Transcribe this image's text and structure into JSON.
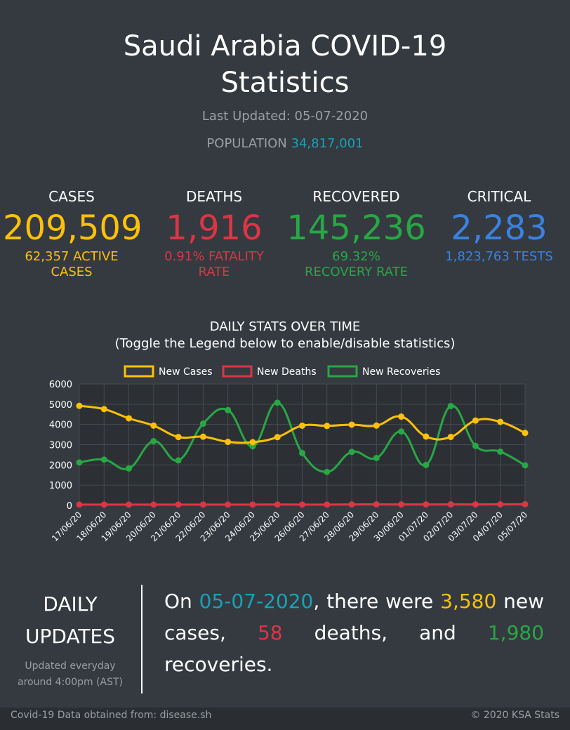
{
  "header": {
    "title_line1": "Saudi Arabia COVID-19",
    "title_line2": "Statistics",
    "last_updated": "Last Updated: 05-07-2020",
    "population_label": "POPULATION",
    "population_value": "34,817,001"
  },
  "stats": {
    "cases": {
      "label": "CASES",
      "value": "209,509",
      "sub1": "62,357 ACTIVE",
      "sub2": "CASES",
      "color": "#ffc107"
    },
    "deaths": {
      "label": "DEATHS",
      "value": "1,916",
      "sub1": "0.91% FATALITY",
      "sub2": "RATE",
      "color": "#dc3545"
    },
    "recovered": {
      "label": "RECOVERED",
      "value": "145,236",
      "sub1": "69.32%",
      "sub2": "RECOVERY RATE",
      "color": "#28a745"
    },
    "critical": {
      "label": "CRITICAL",
      "value": "2,283",
      "sub1": "1,823,763 TESTS",
      "color": "#3a82e0"
    }
  },
  "chart_data": {
    "type": "line",
    "title": "DAILY STATS OVER TIME",
    "subtitle": "(Toggle the Legend below to enable/disable statistics)",
    "categories": [
      "17/06/20",
      "18/06/20",
      "19/06/20",
      "20/06/20",
      "21/06/20",
      "22/06/20",
      "23/06/20",
      "24/06/20",
      "25/06/20",
      "26/06/20",
      "27/06/20",
      "28/06/20",
      "29/06/20",
      "30/06/20",
      "01/07/20",
      "02/07/20",
      "03/07/20",
      "04/07/20",
      "05/07/20"
    ],
    "series": [
      {
        "name": "New Cases",
        "color": "#ffc107",
        "values": [
          4919,
          4757,
          4301,
          3941,
          3379,
          3393,
          3139,
          3123,
          3372,
          3938,
          3927,
          3989,
          3943,
          4387,
          3402,
          3383,
          4193,
          4128,
          3580
        ]
      },
      {
        "name": "New Deaths",
        "color": "#dc3545",
        "values": [
          39,
          40,
          40,
          39,
          40,
          40,
          41,
          40,
          45,
          41,
          40,
          49,
          50,
          49,
          48,
          50,
          49,
          52,
          58
        ]
      },
      {
        "name": "New Recoveries",
        "color": "#28a745",
        "values": [
          2122,
          2263,
          1826,
          3172,
          2222,
          4040,
          4710,
          2918,
          5074,
          2585,
          1653,
          2644,
          2343,
          3652,
          1996,
          4909,
          2939,
          2655,
          1980
        ]
      }
    ],
    "ylim": [
      0,
      6000
    ],
    "yticks": [
      0,
      1000,
      2000,
      3000,
      4000,
      5000,
      6000
    ],
    "grid": true,
    "legend": "top"
  },
  "daily": {
    "heading1": "DAILY",
    "heading2": "UPDATES",
    "note1": "Updated everyday",
    "note2": "around 4:00pm (AST)",
    "t_on": "On",
    "date": "05-07-2020",
    "t_there": ", there were",
    "cases": "3,580",
    "t_new": "new cases,",
    "deaths": "58",
    "t_and": "deaths, and",
    "recoveries": "1,980",
    "t_rec": "recoveries."
  },
  "footer": {
    "source": "Covid-19 Data obtained from: disease.sh",
    "copyright": "© 2020 KSA Stats"
  }
}
